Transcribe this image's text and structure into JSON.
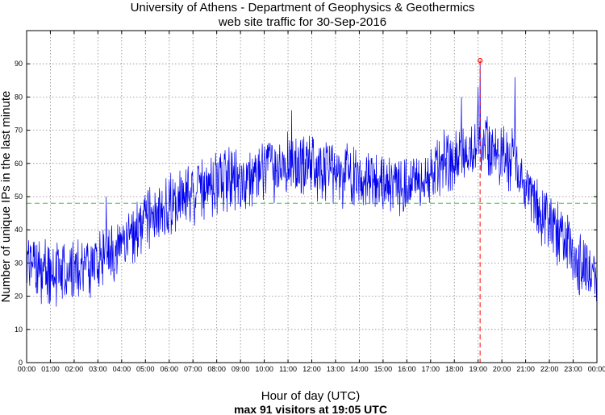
{
  "chart_data": {
    "type": "line",
    "title_line1": "University of Athens - Department of Geophysics & Geothermics",
    "title_line2": "web site traffic for 30-Sep-2016",
    "xlabel": "Hour of day (UTC)",
    "ylabel": "Number of unique IPs in the last minute",
    "subtitle": "max 91 visitors at 19:05 UTC",
    "xlim": [
      0,
      24
    ],
    "ylim": [
      0,
      100
    ],
    "x_tick_labels": [
      "00:00",
      "01:00",
      "02:00",
      "03:00",
      "04:00",
      "05:00",
      "06:00",
      "07:00",
      "08:00",
      "09:00",
      "10:00",
      "11:00",
      "12:00",
      "13:00",
      "14:00",
      "15:00",
      "16:00",
      "17:00",
      "18:00",
      "19:00",
      "20:00",
      "21:00",
      "22:00",
      "23:00",
      "00:00"
    ],
    "y_ticks": [
      0,
      10,
      20,
      30,
      40,
      50,
      60,
      70,
      80,
      90
    ],
    "grid": true,
    "series_color": "#0000ee",
    "average_line": {
      "value": 48,
      "color": "#33cc33"
    },
    "max_marker": {
      "hour": 19.083,
      "value": 91,
      "color": "#ff0000"
    },
    "trend_hours": [
      0,
      1,
      2,
      3,
      4,
      5,
      6,
      7,
      8,
      9,
      10,
      11,
      12,
      13,
      14,
      15,
      16,
      17,
      18,
      19,
      19.5,
      20,
      20.5,
      21,
      22,
      23,
      24
    ],
    "trend_values": [
      29,
      27,
      28,
      30,
      35,
      42,
      47,
      51,
      55,
      54,
      58,
      59,
      59,
      57,
      56,
      55,
      53,
      57,
      62,
      66,
      64,
      62,
      60,
      53,
      42,
      32,
      25
    ],
    "notable_spikes": [
      {
        "hour": 3.35,
        "value": 50
      },
      {
        "hour": 11.15,
        "value": 76
      },
      {
        "hour": 18.3,
        "value": 80
      },
      {
        "hour": 19.0,
        "value": 83
      },
      {
        "hour": 19.08,
        "value": 91
      },
      {
        "hour": 20.55,
        "value": 86
      }
    ]
  }
}
